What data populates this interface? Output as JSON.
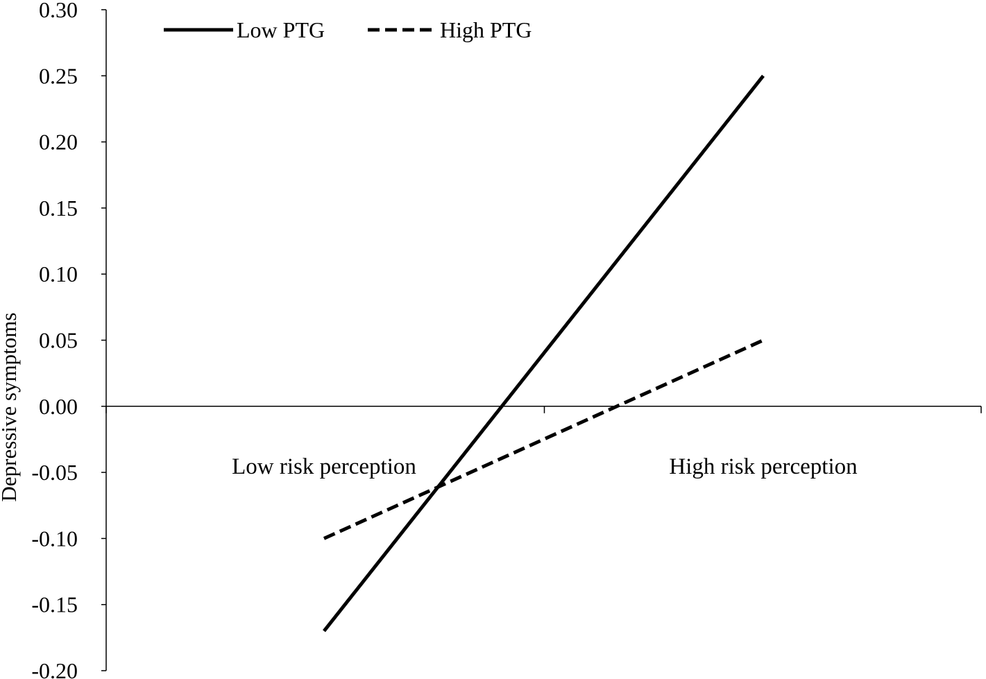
{
  "chart_data": {
    "type": "line",
    "title": "",
    "xlabel": "",
    "ylabel": "Depressive symptoms",
    "categories": [
      "Low risk perception",
      "High risk perception"
    ],
    "ylim": [
      -0.2,
      0.3
    ],
    "yticks": [
      "-0.20",
      "-0.15",
      "-0.10",
      "-0.05",
      "0.00",
      "0.05",
      "0.10",
      "0.15",
      "0.20",
      "0.25",
      "0.30"
    ],
    "series": [
      {
        "name": "Low PTG",
        "values": [
          -0.17,
          0.25
        ],
        "style": "solid",
        "color": "#000000"
      },
      {
        "name": "High PTG",
        "values": [
          -0.1,
          0.05
        ],
        "style": "dashed",
        "color": "#000000"
      }
    ],
    "legend_position": "top-left",
    "grid": false
  }
}
